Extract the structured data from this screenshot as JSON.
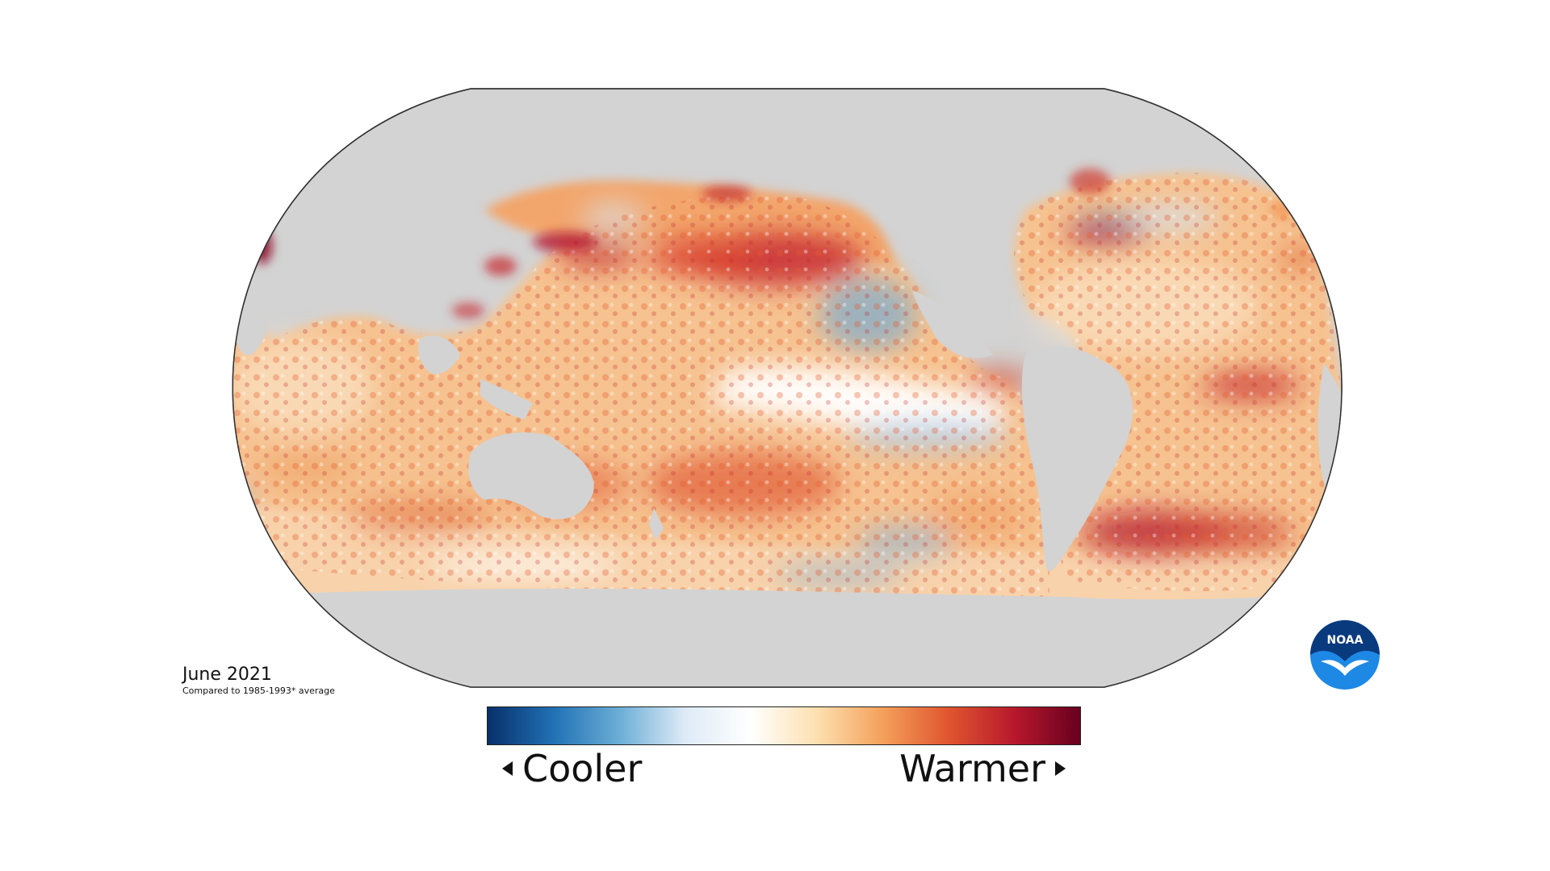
{
  "map": {
    "date_label": "June 2021",
    "comparison_note": "Compared to 1985-1993* average",
    "land_color": "#d3d3d3",
    "border_color": "#333333"
  },
  "legend": {
    "left_label": "Cooler",
    "right_label": "Warmer",
    "colors": [
      "#08306b",
      "#2171b5",
      "#6baed6",
      "#deebf7",
      "#ffffff",
      "#fde0b0",
      "#f4a05a",
      "#e0552f",
      "#b8182b",
      "#67001f"
    ]
  },
  "logo": {
    "text": "NOAA",
    "primary_color": "#0a3a7e",
    "secondary_color": "#1e88e5"
  }
}
